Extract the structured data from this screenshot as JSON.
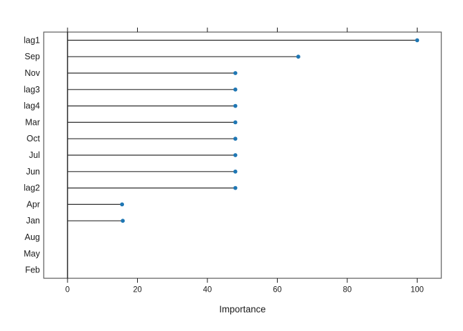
{
  "figure": {
    "background_color": "#ffffff"
  },
  "chart_data": {
    "type": "scatter",
    "subtype": "horizontal-lollipop-dotplot",
    "title": "",
    "xlabel": "Importance",
    "ylabel": "",
    "xlim": [
      -6.8,
      106.9
    ],
    "xticks": [
      0,
      20,
      40,
      60,
      80,
      100
    ],
    "xtick_labels": [
      "0",
      "20",
      "40",
      "60",
      "80",
      "100"
    ],
    "ticks_on_top_and_bottom": true,
    "grid": false,
    "zero_reference_line": true,
    "legend": "none",
    "categories": [
      "lag1",
      "Sep",
      "Nov",
      "lag3",
      "lag4",
      "Mar",
      "Oct",
      "Jul",
      "Jun",
      "lag2",
      "Apr",
      "Jan",
      "Aug",
      "May",
      "Feb"
    ],
    "values": [
      100,
      66,
      48,
      48,
      48,
      48,
      48,
      48,
      48,
      48,
      15.6,
      15.8,
      0,
      0,
      0
    ],
    "point_visible": [
      true,
      true,
      true,
      true,
      true,
      true,
      true,
      true,
      true,
      true,
      true,
      true,
      false,
      false,
      false
    ],
    "colors": {
      "point": "#1f77b4",
      "stem": "#2b2b2b",
      "frame": "#6f6f6f",
      "axis_line": "#1a1a1a",
      "text": "#1a1a1a"
    }
  }
}
